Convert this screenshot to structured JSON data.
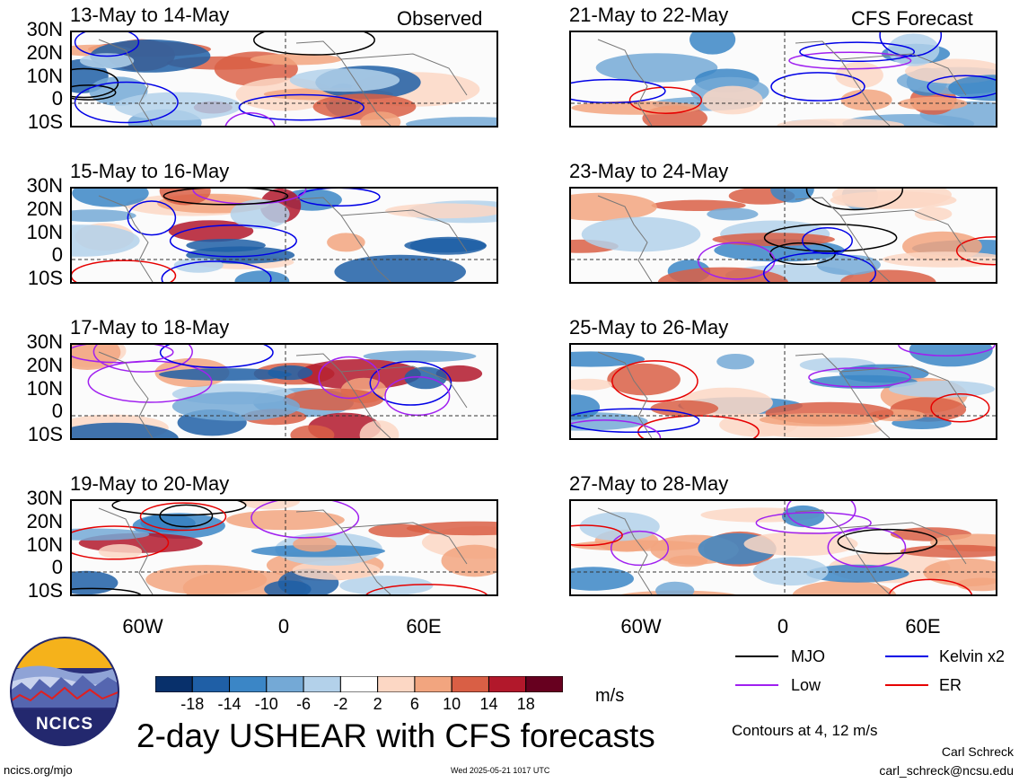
{
  "panels": [
    {
      "title": "13-May to 14-May",
      "tag": "Observed"
    },
    {
      "title": "15-May to 16-May",
      "tag": ""
    },
    {
      "title": "17-May to 18-May",
      "tag": ""
    },
    {
      "title": "19-May to 20-May",
      "tag": ""
    },
    {
      "title": "21-May to 22-May",
      "tag": "CFS Forecast"
    },
    {
      "title": "23-May to 24-May",
      "tag": ""
    },
    {
      "title": "25-May to 26-May",
      "tag": ""
    },
    {
      "title": "27-May to 28-May",
      "tag": ""
    }
  ],
  "lat_labels": [
    "30N",
    "20N",
    "10N",
    "0",
    "10S"
  ],
  "lon_labels": [
    "60W",
    "0",
    "60E"
  ],
  "colorbar": {
    "ticks": [
      "-18",
      "-14",
      "-10",
      "-6",
      "-2",
      "2",
      "6",
      "10",
      "14",
      "18"
    ],
    "colors": [
      "#08306b",
      "#1f5fa6",
      "#3b86c6",
      "#74a9d6",
      "#b3d1ea",
      "#ffffff",
      "#fcd7c4",
      "#f2a57f",
      "#d95f45",
      "#b2182b",
      "#67001f"
    ],
    "units": "m/s"
  },
  "legend": [
    {
      "label": "MJO",
      "color": "#000000"
    },
    {
      "label": "Kelvin x2",
      "color": "#0000e6"
    },
    {
      "label": "Low",
      "color": "#a020f0"
    },
    {
      "label": "ER",
      "color": "#e60000"
    }
  ],
  "title": "2-day USHEAR with CFS forecasts",
  "contours_note": "Contours at 4, 12 m/s",
  "logo_text": "NCICS",
  "footer": {
    "url": "ncics.org/mjo",
    "timestamp": "Wed 2025-05-21 1017 UTC",
    "author": "Carl Schreck",
    "email": "carl_schreck@ncsu.edu"
  }
}
